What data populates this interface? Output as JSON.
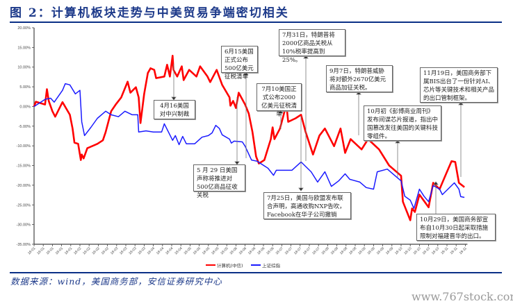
{
  "title": "图 2：计算机板块走势与中美贸易争端密切相关",
  "source": "数据来源：wind，美国商务部，安信证券研究中心",
  "watermark": "www.767stock.com",
  "colors": {
    "computer": "#ff0000",
    "shanghai": "#1a1aff",
    "brand": "#0a2f86"
  },
  "annotations": [
    {
      "text": "4月16美国对中兴制裁"
    },
    {
      "text": "6月15美国正式公布500亿美元征税清单"
    },
    {
      "text": "5 月 29 日美国声称将推进对 500亿商品征收关税"
    },
    {
      "text": "7月10美国正式公布2000亿美元征税清单"
    },
    {
      "text": "7月31日，特朗普将2000亿商品关税从10%税率提高到25%。"
    },
    {
      "text": "7月25日，美国与欧盟发布联合声明，高通收购NXP告吹，Facebook在华子公司撤销"
    },
    {
      "text": "9月7日，特朗普威胁将对额外2670亿美元商品加征关税。"
    },
    {
      "text": "10月初《彭博商业周刊》发布间谍芯片报道，指出中国篡改发往美国的关键科技零组件。"
    },
    {
      "text": "11月19日，美国商务部下属BIS出台了一份针对AI、芯片等关键技术和相关产品的出口管制框架。"
    },
    {
      "text": "10月29日，美国商务部宣布自10月30日起采取措施限制对福建晋华的出口。"
    }
  ],
  "chart_data": {
    "type": "line",
    "title": "计算机板块走势与中美贸易争端密切相关",
    "xlabel": "",
    "ylabel": "",
    "ylim": [
      -35,
      20
    ],
    "yticks": [
      "20.00%",
      "15.00%",
      "10.00%",
      "5.00%",
      "0.00%",
      "-5.00%",
      "-10.00%",
      "-15.00%",
      "-20.00%",
      "-25.00%",
      "-30.00%",
      "-35.00%"
    ],
    "xticks": [
      "18-01",
      "18-01",
      "18-01",
      "18-01",
      "18-01",
      "18-02",
      "18-02",
      "18-02",
      "18-02",
      "18-03",
      "18-03",
      "18-03",
      "18-03",
      "18-04",
      "18-04",
      "18-04",
      "18-04",
      "18-05",
      "18-05",
      "18-05",
      "18-05",
      "18-05",
      "18-06",
      "18-06",
      "18-06",
      "18-06",
      "18-06",
      "18-07",
      "18-07",
      "18-07",
      "18-07",
      "18-07",
      "18-08",
      "18-08",
      "18-08",
      "18-08",
      "18-09",
      "18-09",
      "18-09",
      "18-09",
      "18-10",
      "18-10",
      "18-10",
      "18-10",
      "18-10",
      "18-11",
      "18-11",
      "18-11"
    ],
    "x_unit": "tick index (0-47)",
    "legend": "bottom-center",
    "series": [
      {
        "name": "计算机(中信)",
        "color": "#ff0000",
        "points": [
          [
            0,
            0
          ],
          [
            0.2,
            1.2
          ],
          [
            1.2,
            0.5
          ],
          [
            1.4,
            4.4
          ],
          [
            1.6,
            1.4
          ],
          [
            2.0,
            -1.2
          ],
          [
            2.3,
            -2.6
          ],
          [
            3.1,
            1.1
          ],
          [
            3.9,
            -2.1
          ],
          [
            4.2,
            -5.6
          ],
          [
            4.4,
            -9.2
          ],
          [
            4.8,
            -9.5
          ],
          [
            5.1,
            -13.6
          ],
          [
            5.2,
            -12.2
          ],
          [
            5.4,
            -13.2
          ],
          [
            5.8,
            -10.6
          ],
          [
            6.9,
            -9.5
          ],
          [
            7.5,
            -8.6
          ],
          [
            7.8,
            -6.5
          ],
          [
            8.4,
            -1.2
          ],
          [
            8.9,
            0.5
          ],
          [
            9.5,
            2.3
          ],
          [
            10.2,
            6.3
          ],
          [
            10.5,
            3.5
          ],
          [
            11.1,
            4.9
          ],
          [
            11.4,
            2.3
          ],
          [
            11.6,
            -4.2
          ],
          [
            12.0,
            3.2
          ],
          [
            12.4,
            8.5
          ],
          [
            12.7,
            9.7
          ],
          [
            13.1,
            9.3
          ],
          [
            13.3,
            7.2
          ],
          [
            14.2,
            7.6
          ],
          [
            14.5,
            10.6
          ],
          [
            14.8,
            7.6
          ],
          [
            15.1,
            12.9
          ],
          [
            15.2,
            9.3
          ],
          [
            15.6,
            7.6
          ],
          [
            16.1,
            10.2
          ],
          [
            16.3,
            6.7
          ],
          [
            16.9,
            9.3
          ],
          [
            17.7,
            7.6
          ],
          [
            18.1,
            10.2
          ],
          [
            18.9,
            7.6
          ],
          [
            19.2,
            6.2
          ],
          [
            19.9,
            9.3
          ],
          [
            20.5,
            5.5
          ],
          [
            21.3,
            2.3
          ],
          [
            21.4,
            0.2
          ],
          [
            21.7,
            1.4
          ],
          [
            22.0,
            -0.4
          ],
          [
            22.3,
            3.5
          ],
          [
            23.0,
            0.5
          ],
          [
            23.4,
            -1.8
          ],
          [
            23.8,
            -6.5
          ],
          [
            24.2,
            -12.7
          ],
          [
            24.5,
            -14.5
          ],
          [
            25.1,
            -13.6
          ],
          [
            25.8,
            -8.3
          ],
          [
            26.0,
            -5.3
          ],
          [
            26.2,
            -8.3
          ],
          [
            26.8,
            -5.6
          ],
          [
            27.5,
            0.5
          ],
          [
            27.7,
            -3.9
          ],
          [
            28.5,
            -3.0
          ],
          [
            29.1,
            -2.1
          ],
          [
            29.6,
            -6.5
          ],
          [
            30.4,
            -12.2
          ],
          [
            31.1,
            -7.4
          ],
          [
            31.7,
            -5.6
          ],
          [
            32.7,
            -10.1
          ],
          [
            33.4,
            -5.6
          ],
          [
            33.9,
            -11.8
          ],
          [
            34.5,
            -8.3
          ],
          [
            35.7,
            -10.9
          ],
          [
            36.4,
            -8.3
          ],
          [
            37.6,
            -10.9
          ],
          [
            38.7,
            -15.0
          ],
          [
            40.0,
            -17.6
          ],
          [
            40.2,
            -24.2
          ],
          [
            41.0,
            -28.9
          ],
          [
            41.2,
            -25.9
          ],
          [
            41.5,
            -26.8
          ],
          [
            42.0,
            -22.4
          ],
          [
            43.0,
            -25.6
          ],
          [
            43.5,
            -19.4
          ],
          [
            44.2,
            -21.0
          ],
          [
            45.0,
            -16.6
          ],
          [
            45.5,
            -13.9
          ],
          [
            45.9,
            -14.1
          ],
          [
            46.3,
            -19.4
          ],
          [
            46.9,
            -20.5
          ]
        ]
      },
      {
        "name": "上证综指",
        "color": "#1a1aff",
        "points": [
          [
            0,
            0
          ],
          [
            1.2,
            1.8
          ],
          [
            1.8,
            2.1
          ],
          [
            2.2,
            1.1
          ],
          [
            3.1,
            4.1
          ],
          [
            3.4,
            5.8
          ],
          [
            3.9,
            5.5
          ],
          [
            4.5,
            3.2
          ],
          [
            5.0,
            4.1
          ],
          [
            5.2,
            -3.9
          ],
          [
            5.5,
            -7.4
          ],
          [
            6.2,
            -5.3
          ],
          [
            6.9,
            -3.0
          ],
          [
            7.8,
            -1.2
          ],
          [
            8.4,
            -2.1
          ],
          [
            9.2,
            -2.6
          ],
          [
            9.9,
            -1.2
          ],
          [
            10.7,
            -2.1
          ],
          [
            11.3,
            -2.1
          ],
          [
            11.4,
            -6.5
          ],
          [
            12.2,
            -6.2
          ],
          [
            13.0,
            -6.5
          ],
          [
            13.9,
            -6.5
          ],
          [
            14.2,
            -4.4
          ],
          [
            15.1,
            -8.6
          ],
          [
            15.4,
            -7.4
          ],
          [
            15.8,
            -9.7
          ],
          [
            16.2,
            -7.6
          ],
          [
            16.6,
            -9.5
          ],
          [
            17.5,
            -9.5
          ],
          [
            18.3,
            -7.8
          ],
          [
            19.0,
            -7.4
          ],
          [
            19.4,
            -6.7
          ],
          [
            19.8,
            -4.8
          ],
          [
            20.2,
            -5.6
          ],
          [
            20.5,
            -7.2
          ],
          [
            21.3,
            -8.3
          ],
          [
            21.5,
            -9.3
          ],
          [
            21.8,
            -8.8
          ],
          [
            22.7,
            -9.0
          ],
          [
            23.0,
            -10.1
          ],
          [
            23.7,
            -13.6
          ],
          [
            24.3,
            -13.9
          ],
          [
            25.5,
            -15.7
          ],
          [
            26.1,
            -17.5
          ],
          [
            26.4,
            -16.2
          ],
          [
            27.3,
            -16.2
          ],
          [
            28.1,
            -16.2
          ],
          [
            29.1,
            -14.1
          ],
          [
            30.2,
            -16.6
          ],
          [
            30.9,
            -19.2
          ],
          [
            31.7,
            -16.6
          ],
          [
            32.4,
            -20.3
          ],
          [
            33.2,
            -18.9
          ],
          [
            33.9,
            -17.1
          ],
          [
            34.4,
            -18.5
          ],
          [
            35.5,
            -19.2
          ],
          [
            36.2,
            -20.6
          ],
          [
            37.0,
            -21.0
          ],
          [
            37.4,
            -16.6
          ],
          [
            38.5,
            -15.9
          ],
          [
            40.0,
            -18.9
          ],
          [
            40.4,
            -22.8
          ],
          [
            41.0,
            -23.8
          ],
          [
            41.4,
            -25.9
          ],
          [
            42.0,
            -21.0
          ],
          [
            42.5,
            -22.8
          ],
          [
            43.0,
            -24.2
          ],
          [
            43.5,
            -20.1
          ],
          [
            44.2,
            -21.0
          ],
          [
            44.5,
            -22.4
          ],
          [
            45.8,
            -19.4
          ],
          [
            46.3,
            -21.0
          ],
          [
            46.5,
            -22.9
          ],
          [
            46.9,
            -23.1
          ]
        ]
      }
    ]
  }
}
